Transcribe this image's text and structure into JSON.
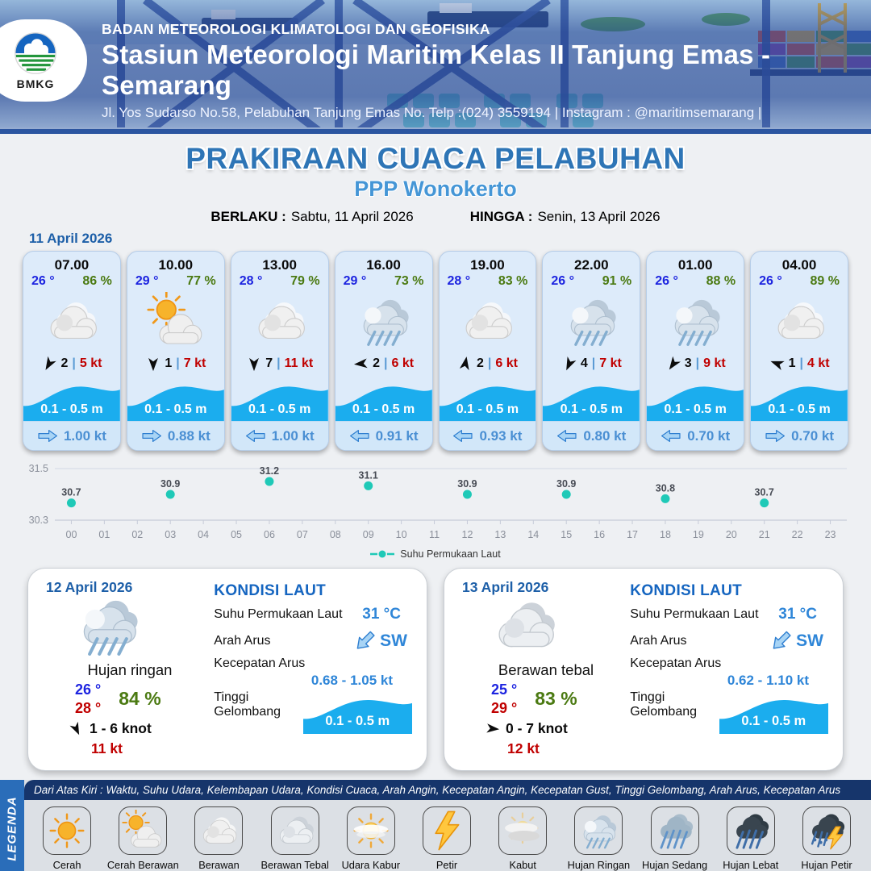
{
  "header": {
    "org": "BADAN METEOROLOGI KLIMATOLOGI DAN GEOFISIKA",
    "station": "Stasiun Meteorologi Maritim Kelas II Tanjung Emas - Semarang",
    "address": "Jl. Yos Sudarso No.58, Pelabuhan Tanjung Emas No. Telp :(024) 3559194 | Instagram : @maritimsemarang |",
    "logo_text": "BMKG"
  },
  "title": {
    "main": "PRAKIRAAN CUACA PELABUHAN",
    "subtitle": "PPP Wonokerto",
    "berlaku_label": "BERLAKU :",
    "berlaku_value": "Sabtu, 11 April 2026",
    "hingga_label": "HINGGA :",
    "hingga_value": "Senin, 13 April 2026"
  },
  "forecast": {
    "date": "11 April 2026",
    "sep": "|",
    "cards": [
      {
        "time": "07.00",
        "temp": "26 °",
        "humidity": "86 %",
        "icon": "berawan",
        "icon_ref": "#icon-berawan",
        "wind_dir_deg": 210,
        "wind_scale": "2",
        "wind_speed": "5 kt",
        "wave": "0.1 - 0.5 m",
        "current_dir_deg": 0,
        "current": "1.00 kt"
      },
      {
        "time": "10.00",
        "temp": "29 °",
        "humidity": "77 %",
        "icon": "cerah-berawan",
        "icon_ref": "#icon-cerah-berawan",
        "wind_dir_deg": 180,
        "wind_scale": "1",
        "wind_speed": "7 kt",
        "wave": "0.1 - 0.5 m",
        "current_dir_deg": 0,
        "current": "0.88 kt"
      },
      {
        "time": "13.00",
        "temp": "28 °",
        "humidity": "79 %",
        "icon": "berawan",
        "icon_ref": "#icon-berawan",
        "wind_dir_deg": 180,
        "wind_scale": "7",
        "wind_speed": "11 kt",
        "wave": "0.1 - 0.5 m",
        "current_dir_deg": 180,
        "current": "1.00 kt"
      },
      {
        "time": "16.00",
        "temp": "29 °",
        "humidity": "73 %",
        "icon": "hujan-ringan",
        "icon_ref": "#icon-hujan-ringan",
        "wind_dir_deg": 265,
        "wind_scale": "2",
        "wind_speed": "6 kt",
        "wave": "0.1 - 0.5 m",
        "current_dir_deg": 180,
        "current": "0.91 kt"
      },
      {
        "time": "19.00",
        "temp": "28 °",
        "humidity": "83 %",
        "icon": "berawan",
        "icon_ref": "#icon-berawan",
        "wind_dir_deg": 10,
        "wind_scale": "2",
        "wind_speed": "6 kt",
        "wave": "0.1 - 0.5 m",
        "current_dir_deg": 180,
        "current": "0.93 kt"
      },
      {
        "time": "22.00",
        "temp": "26 °",
        "humidity": "91 %",
        "icon": "hujan-ringan",
        "icon_ref": "#icon-hujan-ringan",
        "wind_dir_deg": 205,
        "wind_scale": "4",
        "wind_speed": "7 kt",
        "wave": "0.1 - 0.5 m",
        "current_dir_deg": 180,
        "current": "0.80 kt"
      },
      {
        "time": "01.00",
        "temp": "26 °",
        "humidity": "88 %",
        "icon": "hujan-ringan",
        "icon_ref": "#icon-hujan-ringan",
        "wind_dir_deg": 215,
        "wind_scale": "3",
        "wind_speed": "9 kt",
        "wave": "0.1 - 0.5 m",
        "current_dir_deg": 180,
        "current": "0.70 kt"
      },
      {
        "time": "04.00",
        "temp": "26 °",
        "humidity": "89 %",
        "icon": "berawan",
        "icon_ref": "#icon-berawan",
        "wind_dir_deg": 290,
        "wind_scale": "1",
        "wind_speed": "4 kt",
        "wave": "0.1 - 0.5 m",
        "current_dir_deg": 0,
        "current": "0.70 kt"
      }
    ]
  },
  "chart_data": {
    "type": "scatter",
    "legend": "Suhu Permukaan Laut",
    "x": [
      0,
      3,
      6,
      9,
      12,
      15,
      18,
      21
    ],
    "values": [
      30.7,
      30.9,
      31.2,
      31.1,
      30.9,
      30.9,
      30.8,
      30.7
    ],
    "x_ticks": [
      "00",
      "01",
      "02",
      "03",
      "04",
      "05",
      "06",
      "07",
      "08",
      "09",
      "10",
      "11",
      "12",
      "13",
      "14",
      "15",
      "16",
      "17",
      "18",
      "19",
      "20",
      "21",
      "22",
      "23"
    ],
    "ylim": [
      30.3,
      31.5
    ],
    "y_ticks": [
      "31.5",
      "30.3"
    ],
    "grid": true,
    "legend_position": "bottom-center",
    "point_color": "#1fc9b7",
    "ylabel": "",
    "xlabel": ""
  },
  "daily": [
    {
      "date": "12 April 2026",
      "icon": "hujan-ringan",
      "icon_ref": "#icon-hujan-ringan",
      "condition": "Hujan ringan",
      "temp_min": "26 °",
      "temp_max": "28 °",
      "humidity": "84 %",
      "wind_dir_deg": 155,
      "wind_range": "1  - 6 knot",
      "gust": "11 kt",
      "sea": {
        "heading": "KONDISI LAUT",
        "sst_label": "Suhu Permukaan Laut",
        "sst": "31 °C",
        "arus_label": "Arah Arus",
        "arus_dir": "SW",
        "arus_dir_deg": 135,
        "kecepatan_label": "Kecepatan Arus",
        "kecepatan": "0.68 - 1.05 kt",
        "gelombang_label": "Tinggi Gelombang",
        "gelombang": "0.1 - 0.5 m"
      }
    },
    {
      "date": "13 April 2026",
      "icon": "berawan-tebal",
      "icon_ref": "#icon-berawan-tebal",
      "condition": "Berawan tebal",
      "temp_min": "25 °",
      "temp_max": "29 °",
      "humidity": "83 %",
      "wind_dir_deg": 95,
      "wind_range": "0  - 7 knot",
      "gust": "12 kt",
      "sea": {
        "heading": "KONDISI LAUT",
        "sst_label": "Suhu Permukaan Laut",
        "sst": "31 °C",
        "arus_label": "Arah Arus",
        "arus_dir": "SW",
        "arus_dir_deg": 135,
        "kecepatan_label": "Kecepatan Arus",
        "kecepatan": "0.62 - 1.10 kt",
        "gelombang_label": "Tinggi Gelombang",
        "gelombang": "0.1 - 0.5 m"
      }
    }
  ],
  "legend": {
    "sidebar": "LEGENDA",
    "note": "Dari Atas Kiri : Waktu, Suhu Udara, Kelembapan Udara, Kondisi Cuaca, Arah Angin, Kecepatan Angin, Kecepatan Gust, Tinggi Gelombang, Arah Arus, Kecepatan Arus",
    "items": [
      {
        "label": "Cerah",
        "icon": "cerah",
        "icon_ref": "#icon-cerah"
      },
      {
        "label": "Cerah Berawan",
        "icon": "cerah-berawan",
        "icon_ref": "#icon-cerah-berawan"
      },
      {
        "label": "Berawan",
        "icon": "berawan",
        "icon_ref": "#icon-berawan"
      },
      {
        "label": "Berawan Tebal",
        "icon": "berawan-tebal",
        "icon_ref": "#icon-berawan-tebal"
      },
      {
        "label": "Udara Kabur",
        "icon": "udara-kabur",
        "icon_ref": "#icon-udara-kabur"
      },
      {
        "label": "Petir",
        "icon": "petir",
        "icon_ref": "#icon-petir"
      },
      {
        "label": "Kabut",
        "icon": "kabut",
        "icon_ref": "#icon-kabut"
      },
      {
        "label": "Hujan Ringan",
        "icon": "hujan-ringan",
        "icon_ref": "#icon-hujan-ringan"
      },
      {
        "label": "Hujan Sedang",
        "icon": "hujan-sedang",
        "icon_ref": "#icon-hujan-sedang"
      },
      {
        "label": "Hujan Lebat",
        "icon": "hujan-lebat",
        "icon_ref": "#icon-hujan-lebat"
      },
      {
        "label": "Hujan Petir",
        "icon": "hujan-petir",
        "icon_ref": "#icon-hujan-petir"
      }
    ]
  },
  "colors": {
    "accent_blue": "#2e75b6",
    "wave_blue": "#1badee",
    "point_teal": "#1fc9b7",
    "maroon_strip": "#7b2030"
  }
}
